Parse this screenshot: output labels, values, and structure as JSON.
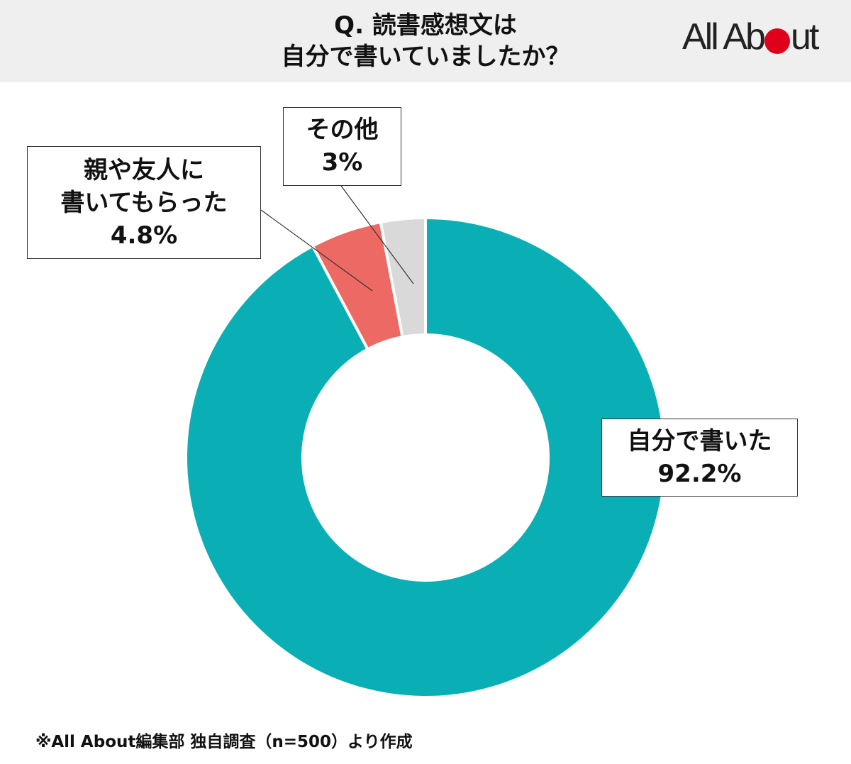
{
  "header": {
    "title_line1": "Q. 読書感想文は",
    "title_line2": "自分で書いていましたか？",
    "logo_left": "All Ab",
    "logo_right": "ut"
  },
  "chart_data": {
    "type": "pie",
    "style": "donut",
    "title": "Q. 読書感想文は自分で書いていましたか？",
    "slices": [
      {
        "label": "自分で書いた",
        "value": 92.2,
        "value_label": "92.2%",
        "color": "#0aafb5"
      },
      {
        "label": "親や友人に書いてもらった",
        "value": 4.8,
        "value_label": "4.8%",
        "color": "#ec6a63"
      },
      {
        "label": "その他",
        "value": 3.0,
        "value_label": "3%",
        "color": "#d9d9d9"
      }
    ],
    "start": "12 o'clock",
    "direction": "clockwise"
  },
  "labels": {
    "self_line1": "自分で書いた",
    "self_value": "92.2%",
    "parents_line1": "親や友人に",
    "parents_line2": "書いてもらった",
    "parents_value": "4.8%",
    "other_line1": "その他",
    "other_value": "3%"
  },
  "footnote": "※All About編集部 独自調査（n=500）より作成",
  "colors": {
    "header_bg": "#efefef",
    "logo_dot": "#e0001b"
  }
}
